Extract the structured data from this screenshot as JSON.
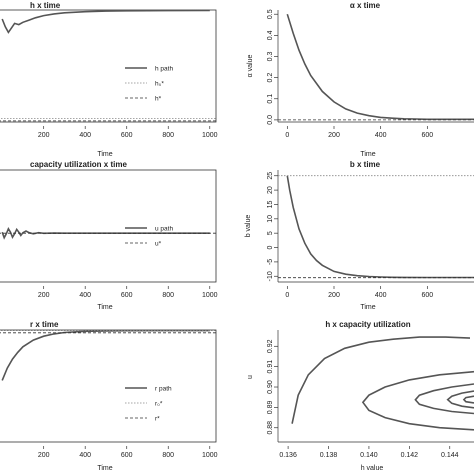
{
  "chart_data": [
    {
      "id": "p1",
      "type": "line",
      "title": "h x time",
      "xlabel": "Time",
      "ylabel": "",
      "xlim": [
        -20,
        1030
      ],
      "ylim": [
        0,
        1
      ],
      "xticks": [
        "200",
        "400",
        "600",
        "800",
        "1000"
      ],
      "xtick_values": [
        200,
        400,
        600,
        800,
        1000
      ],
      "yticks": [],
      "legend": [
        "h path",
        "h₀*",
        "h*"
      ],
      "series": [
        {
          "name": "h path",
          "style": "solid",
          "x": [
            0,
            15,
            30,
            45,
            60,
            80,
            100,
            130,
            160,
            200,
            250,
            300,
            400,
            500,
            600,
            800,
            1000
          ],
          "y": [
            0.92,
            0.85,
            0.8,
            0.84,
            0.88,
            0.87,
            0.89,
            0.91,
            0.93,
            0.95,
            0.965,
            0.975,
            0.985,
            0.99,
            0.993,
            0.995,
            0.996
          ]
        },
        {
          "name": "h₀*",
          "style": "dotted",
          "x": [
            -20,
            1030
          ],
          "y": [
            0.03,
            0.03
          ]
        },
        {
          "name": "h*",
          "style": "dashed",
          "x": [
            -20,
            1030
          ],
          "y": [
            0.01,
            0.01
          ]
        }
      ]
    },
    {
      "id": "p2",
      "type": "line",
      "title": "α x time",
      "xlabel": "Time",
      "ylabel": "α value",
      "xlim": [
        -40,
        800
      ],
      "ylim": [
        -0.01,
        0.52
      ],
      "xticks": [
        "0",
        "200",
        "400",
        "600"
      ],
      "xtick_values": [
        0,
        200,
        400,
        600
      ],
      "yticks": [
        "0.0",
        "0.1",
        "0.2",
        "0.3",
        "0.4",
        "0.5"
      ],
      "ytick_values": [
        0,
        0.1,
        0.2,
        0.3,
        0.4,
        0.5
      ],
      "legend": [],
      "series": [
        {
          "name": "",
          "style": "solid",
          "x": [
            0,
            25,
            50,
            75,
            100,
            150,
            200,
            250,
            300,
            350,
            400,
            450,
            500,
            550,
            600,
            650,
            700,
            750,
            800
          ],
          "y": [
            0.5,
            0.41,
            0.33,
            0.265,
            0.21,
            0.135,
            0.085,
            0.052,
            0.032,
            0.02,
            0.012,
            0.008,
            0.005,
            0.004,
            0.003,
            0.003,
            0.003,
            0.003,
            0.003
          ]
        },
        {
          "name": "",
          "style": "dashed",
          "x": [
            -40,
            800
          ],
          "y": [
            0.0,
            0.0
          ]
        }
      ]
    },
    {
      "id": "p3",
      "type": "line",
      "title": "capacity utilization x time",
      "xlabel": "Time",
      "ylabel": "",
      "xlim": [
        -20,
        1030
      ],
      "ylim": [
        0,
        1
      ],
      "xticks": [
        "200",
        "400",
        "600",
        "800",
        "1000"
      ],
      "xtick_values": [
        200,
        400,
        600,
        800,
        1000
      ],
      "yticks": [],
      "legend": [
        "u path",
        "u*"
      ],
      "series": [
        {
          "name": "u path",
          "style": "solid",
          "x": [
            0,
            10,
            20,
            30,
            40,
            50,
            60,
            70,
            80,
            90,
            100,
            115,
            130,
            150,
            175,
            200,
            250,
            300,
            400,
            600,
            1000
          ],
          "y": [
            0.445,
            0.395,
            0.43,
            0.475,
            0.445,
            0.4,
            0.43,
            0.47,
            0.445,
            0.415,
            0.44,
            0.455,
            0.44,
            0.43,
            0.44,
            0.435,
            0.437,
            0.436,
            0.436,
            0.436,
            0.436
          ]
        },
        {
          "name": "u*",
          "style": "dashed",
          "x": [
            -20,
            1030
          ],
          "y": [
            0.436,
            0.436
          ]
        }
      ]
    },
    {
      "id": "p4",
      "type": "line",
      "title": "b x time",
      "xlabel": "Time",
      "ylabel": "b value",
      "xlim": [
        -40,
        800
      ],
      "ylim": [
        -12,
        27
      ],
      "xticks": [
        "0",
        "200",
        "400",
        "600"
      ],
      "xtick_values": [
        0,
        200,
        400,
        600
      ],
      "yticks": [
        "-10",
        "-5",
        "0",
        "5",
        "10",
        "15",
        "20",
        "25"
      ],
      "ytick_values": [
        -10,
        -5,
        0,
        5,
        10,
        15,
        20,
        25
      ],
      "legend": [],
      "series": [
        {
          "name": "",
          "style": "solid",
          "x": [
            0,
            10,
            25,
            50,
            75,
            100,
            125,
            150,
            200,
            250,
            300,
            350,
            400,
            450,
            500,
            600,
            700,
            800
          ],
          "y": [
            25,
            20,
            14,
            6.5,
            1.5,
            -2.2,
            -4.5,
            -6.2,
            -8.3,
            -9.3,
            -9.8,
            -10.1,
            -10.25,
            -10.35,
            -10.4,
            -10.45,
            -10.45,
            -10.45
          ]
        },
        {
          "name": "",
          "style": "dotted",
          "x": [
            -40,
            800
          ],
          "y": [
            25,
            25
          ]
        },
        {
          "name": "",
          "style": "dashed",
          "x": [
            -40,
            800
          ],
          "y": [
            -10.5,
            -10.5
          ]
        }
      ]
    },
    {
      "id": "p5",
      "type": "line",
      "title": "r x time",
      "xlabel": "Time",
      "ylabel": "",
      "xlim": [
        -20,
        1030
      ],
      "ylim": [
        0,
        1
      ],
      "xticks": [
        "200",
        "400",
        "600",
        "800",
        "1000"
      ],
      "xtick_values": [
        200,
        400,
        600,
        800,
        1000
      ],
      "yticks": [],
      "legend": [
        "r path",
        "r₀*",
        "r*"
      ],
      "series": [
        {
          "name": "r path",
          "style": "solid",
          "x": [
            0,
            25,
            50,
            75,
            100,
            150,
            200,
            250,
            300,
            400,
            500,
            600,
            800,
            1000
          ],
          "y": [
            0.55,
            0.66,
            0.74,
            0.8,
            0.85,
            0.91,
            0.945,
            0.965,
            0.978,
            0.988,
            0.992,
            0.994,
            0.995,
            0.995
          ]
        },
        {
          "name": "r₀*",
          "style": "dotted",
          "x": [
            -20,
            1030
          ],
          "y": [
            0.995,
            0.995
          ]
        },
        {
          "name": "r*",
          "style": "dashed",
          "x": [
            -20,
            1030
          ],
          "y": [
            0.975,
            0.975
          ]
        }
      ]
    },
    {
      "id": "p6",
      "type": "line",
      "title": "h x capacity utilization",
      "xlabel": "h value",
      "ylabel": "u",
      "xlim": [
        0.1355,
        0.1452
      ],
      "ylim": [
        0.873,
        0.928
      ],
      "xticks": [
        "0.136",
        "0.138",
        "0.140",
        "0.142",
        "0.144"
      ],
      "xtick_values": [
        0.136,
        0.138,
        0.14,
        0.142,
        0.144
      ],
      "yticks": [
        "0.88",
        "0.89",
        "0.90",
        "0.91",
        "0.92"
      ],
      "ytick_values": [
        0.88,
        0.89,
        0.9,
        0.91,
        0.92
      ],
      "legend": [],
      "series": [
        {
          "name": "",
          "style": "solid",
          "x": [
            0.1362,
            0.1365,
            0.137,
            0.1378,
            0.1388,
            0.14,
            0.1412,
            0.1425,
            0.1438,
            0.145
          ],
          "y": [
            0.882,
            0.896,
            0.906,
            0.914,
            0.919,
            0.922,
            0.9235,
            0.9245,
            0.9245,
            0.924
          ]
        },
        {
          "name": "",
          "style": "solid",
          "x": [
            0.1452,
            0.1435,
            0.142,
            0.1408,
            0.14,
            0.1397,
            0.14,
            0.1408,
            0.142,
            0.1435,
            0.1452
          ],
          "y": [
            0.9075,
            0.906,
            0.9035,
            0.9,
            0.896,
            0.8925,
            0.8885,
            0.885,
            0.882,
            0.88,
            0.879
          ]
        },
        {
          "name": "",
          "style": "solid",
          "x": [
            0.1452,
            0.1441,
            0.1432,
            0.1425,
            0.1423,
            0.1425,
            0.1432,
            0.1441,
            0.1452
          ],
          "y": [
            0.9015,
            0.9,
            0.8982,
            0.896,
            0.8937,
            0.8915,
            0.8895,
            0.888,
            0.887
          ]
        },
        {
          "name": "",
          "style": "solid",
          "x": [
            0.1452,
            0.1446,
            0.1441,
            0.1439,
            0.1441,
            0.1446,
            0.1452
          ],
          "y": [
            0.898,
            0.897,
            0.8955,
            0.8938,
            0.892,
            0.8906,
            0.8898
          ]
        },
        {
          "name": "",
          "style": "solid",
          "x": [
            0.1452,
            0.1448,
            0.1447,
            0.1448,
            0.1452
          ],
          "y": [
            0.8955,
            0.8948,
            0.8938,
            0.8928,
            0.8922
          ]
        }
      ]
    }
  ]
}
